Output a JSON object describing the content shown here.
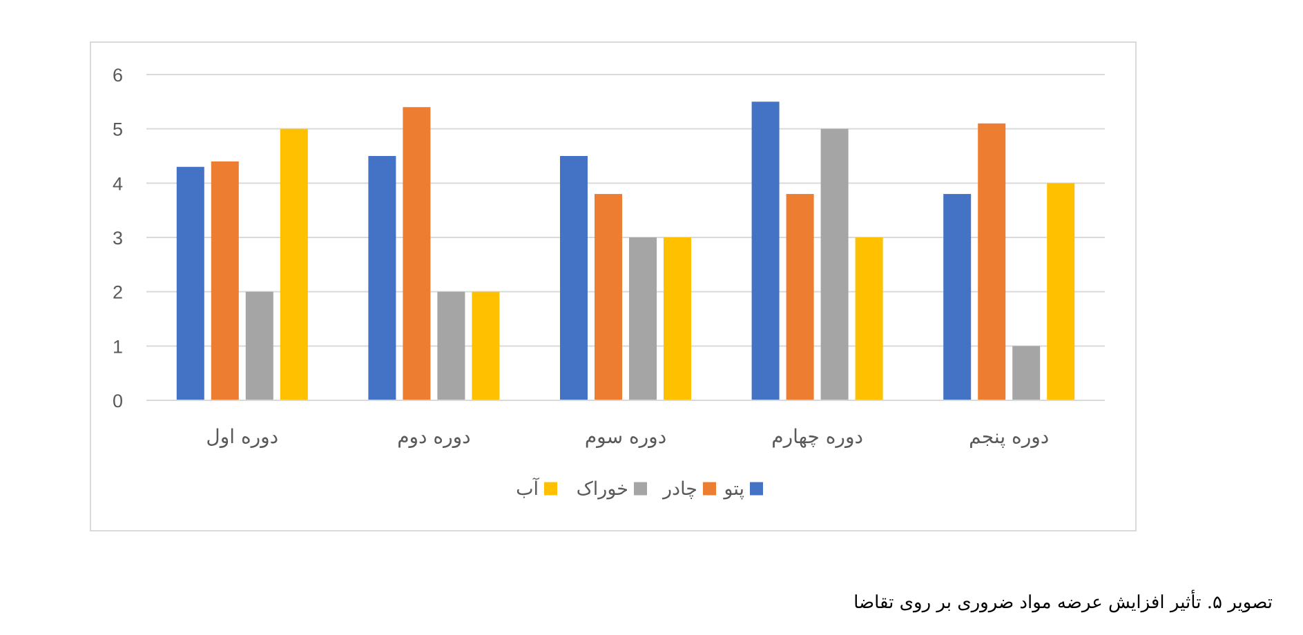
{
  "chart_data": {
    "type": "bar",
    "categories": [
      "دوره اول",
      "دوره دوم",
      "دوره سوم",
      "دوره چهارم",
      "دوره پنجم"
    ],
    "series": [
      {
        "name": "پتو",
        "color": "#4472C4",
        "values": [
          4.3,
          4.5,
          4.5,
          5.5,
          3.8
        ]
      },
      {
        "name": "چادر",
        "color": "#ED7D31",
        "values": [
          4.4,
          5.4,
          3.8,
          3.8,
          5.1
        ]
      },
      {
        "name": "خوراک",
        "color": "#A5A5A5",
        "values": [
          2,
          2,
          3,
          5,
          1
        ]
      },
      {
        "name": "آب",
        "color": "#FFC000",
        "values": [
          5,
          2,
          3,
          3,
          4
        ]
      }
    ],
    "y_ticks": [
      "0",
      "1",
      "2",
      "3",
      "4",
      "5",
      "6"
    ],
    "ylim": [
      0,
      6
    ],
    "grid": true,
    "legend_position": "bottom"
  },
  "caption": "تصویر ۵. تأثیر افزایش عرضه مواد ضروری بر روی تقاضا"
}
